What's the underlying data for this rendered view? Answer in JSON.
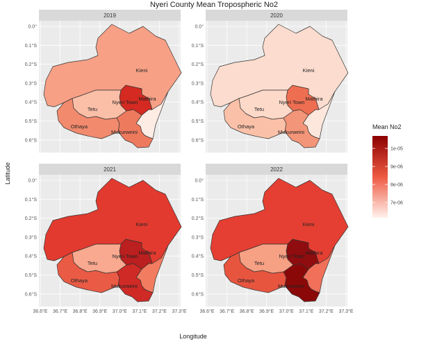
{
  "title": "Nyeri County Mean Tropospheric No2",
  "xlabel": "Longitude",
  "ylabel": "Latitude",
  "x_ticks": [
    "36.6°E",
    "36.7°E",
    "36.8°E",
    "36.9°E",
    "37.0°E",
    "37.1°E",
    "37.2°E",
    "37.3°E"
  ],
  "y_ticks": [
    "0.0°",
    "0.1°S",
    "0.2°S",
    "0.3°S",
    "0.4°S",
    "0.5°S",
    "0.6°S"
  ],
  "legend": {
    "title": "Mean No2",
    "ticks": [
      "1e-05",
      "9e-06",
      "8e-06",
      "7e-06"
    ],
    "colors": {
      "low": "#fff2ec",
      "mid": "#ee5a42",
      "high": "#8b0000"
    }
  },
  "regions": [
    "Kieni",
    "Mathira",
    "Nyeri Town",
    "Tetu",
    "Othaya",
    "Mukurweini"
  ],
  "panels": [
    {
      "year": "2019",
      "colors": {
        "Kieni": "#f7a086",
        "Mathira": "#fdece4",
        "Nyeri Town": "#d42a21",
        "Tetu": "#fbbfa8",
        "Othaya": "#f28a6e",
        "Mukurweini": "#ee7a5e"
      }
    },
    {
      "year": "2020",
      "colors": {
        "Kieni": "#fcdcce",
        "Mathira": "#fde6dc",
        "Nyeri Town": "#ee6e52",
        "Tetu": "#fdd9c9",
        "Othaya": "#fbc1a8",
        "Mukurweini": "#f39578"
      }
    },
    {
      "year": "2021",
      "colors": {
        "Kieni": "#e23a2f",
        "Mathira": "#f27c60",
        "Nyeri Town": "#bb1f1f",
        "Tetu": "#f9a98f",
        "Othaya": "#ea5b45",
        "Mukurweini": "#cf2a25"
      }
    },
    {
      "year": "2022",
      "colors": {
        "Kieni": "#e43f32",
        "Mathira": "#f0705a",
        "Nyeri Town": "#8f0c0f",
        "Tetu": "#f6a084",
        "Othaya": "#e8553f",
        "Mukurweini": "#8b0808"
      }
    }
  ]
}
